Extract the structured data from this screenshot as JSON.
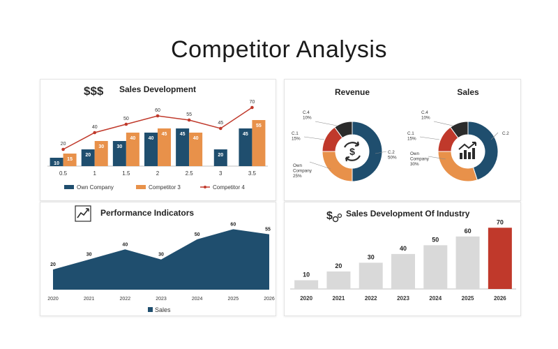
{
  "page_title": "Competitor Analysis",
  "colors": {
    "navy": "#1f4e6e",
    "orange": "#e8914a",
    "red": "#c0392b",
    "dark": "#2b2b2b",
    "gray": "#d9d9d9"
  },
  "icons": {
    "sales_development": "money-icon",
    "revenue_donut": "dollar-cycle-icon",
    "sales_donut": "growth-chart-icon",
    "performance": "trend-line-icon",
    "industry": "dollar-gears-icon"
  },
  "chart_data": [
    {
      "type": "bar",
      "title": "Sales Development",
      "icon_text": "$$$",
      "categories": [
        "0.5",
        "1",
        "1.5",
        "2",
        "2.5",
        "3",
        "3.5"
      ],
      "series": [
        {
          "name": "Own Company",
          "kind": "bar",
          "values": [
            10,
            20,
            30,
            40,
            45,
            20,
            45
          ]
        },
        {
          "name": "Competitor 3",
          "kind": "bar",
          "values": [
            15,
            30,
            40,
            45,
            40,
            null,
            55
          ]
        },
        {
          "name": "Competitor 4",
          "kind": "line",
          "values": [
            20,
            40,
            50,
            60,
            55,
            45,
            70
          ]
        }
      ],
      "legend": "bottom",
      "ylim": [
        0,
        80
      ]
    },
    {
      "type": "pie",
      "title": "Revenue",
      "slices": [
        {
          "label": "C.2",
          "value": 50,
          "text": "50%"
        },
        {
          "label": "Own Company",
          "value": 25,
          "text": "25%"
        },
        {
          "label": "C.1",
          "value": 15,
          "text": "15%"
        },
        {
          "label": "C.4",
          "value": 10,
          "text": "10%"
        }
      ]
    },
    {
      "type": "pie",
      "title": "Sales",
      "slices": [
        {
          "label": "C.2",
          "value": 45,
          "text": ""
        },
        {
          "label": "Own Company",
          "value": 30,
          "text": "30%"
        },
        {
          "label": "C.1",
          "value": 15,
          "text": "15%"
        },
        {
          "label": "C.4",
          "value": 10,
          "text": "10%"
        }
      ]
    },
    {
      "type": "area",
      "title": "Performance Indicators",
      "x": [
        "2020",
        "2021",
        "2022",
        "2023",
        "2024",
        "2025",
        "2026"
      ],
      "series": [
        {
          "name": "Sales",
          "values": [
            20,
            30,
            40,
            30,
            50,
            60,
            55
          ]
        }
      ],
      "legend": "bottom",
      "ylim": [
        0,
        70
      ]
    },
    {
      "type": "bar",
      "title": "Sales Development Of Industry",
      "categories": [
        "2020",
        "2021",
        "2022",
        "2023",
        "2024",
        "2025",
        "2026"
      ],
      "values": [
        10,
        20,
        30,
        40,
        50,
        60,
        70
      ],
      "highlight": "2026",
      "ylim": [
        0,
        75
      ]
    }
  ]
}
